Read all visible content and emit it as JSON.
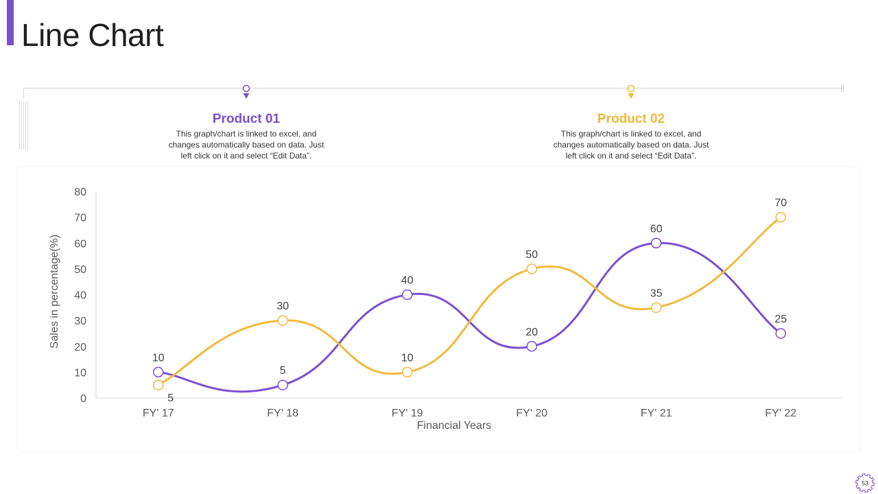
{
  "slide": {
    "title": "Line Chart",
    "page_number": "53",
    "accent_color": "#7b4fd0"
  },
  "legend": [
    {
      "name": "Product 01",
      "color": "#7b4fd0",
      "description_lines": [
        "This graph/chart is linked to excel, and",
        "changes automatically based on data. Just",
        "left click on it and select “Edit Data”."
      ]
    },
    {
      "name": "Product 02",
      "color": "#f2b93b",
      "description_lines": [
        "This graph/chart is linked to excel, and",
        "changes automatically based on data. Just",
        "left click on it and select “Edit Data”."
      ]
    }
  ],
  "chart_data": {
    "type": "line",
    "categories": [
      "FY' 17",
      "FY' 18",
      "FY' 19",
      "FY' 20",
      "FY' 21",
      "FY' 22"
    ],
    "series": [
      {
        "name": "Product 01",
        "color": "#7b4fd0",
        "values": [
          10,
          5,
          40,
          20,
          60,
          25
        ]
      },
      {
        "name": "Product 02",
        "color": "#f2b93b",
        "values": [
          5,
          30,
          10,
          50,
          35,
          70
        ]
      }
    ],
    "xlabel": "Financial Years",
    "ylabel": "Sales in percentage(%)",
    "ylim": [
      0,
      80
    ],
    "yticks": [
      0,
      10,
      20,
      30,
      40,
      50,
      60,
      70,
      80
    ],
    "smooth": true,
    "data_labels": true
  }
}
